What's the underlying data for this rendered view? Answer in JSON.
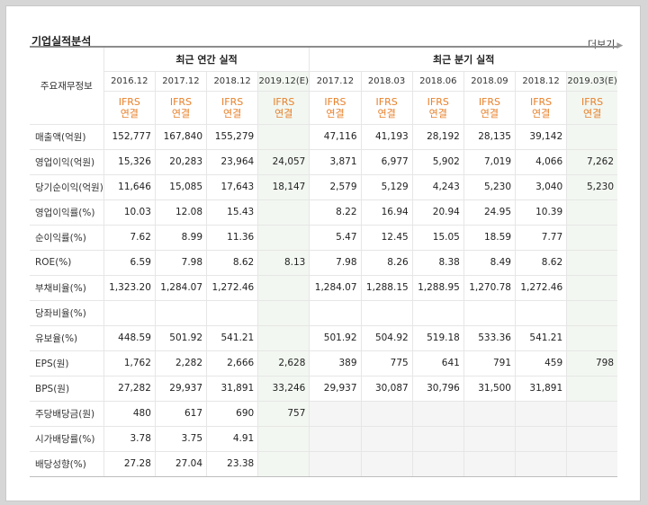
{
  "section": {
    "title": "기업실적분석",
    "more_label": "더보기"
  },
  "table": {
    "row_header_label": "주요재무정보",
    "annual_group_label": "최근 연간 실적",
    "quarter_group_label": "최근 분기 실적",
    "annual_periods": [
      "2016.12",
      "2017.12",
      "2018.12",
      "2019.12(E)"
    ],
    "quarter_periods": [
      "2017.12",
      "2018.03",
      "2018.06",
      "2018.09",
      "2018.12",
      "2019.03(E)"
    ],
    "ifrs_line1": "IFRS",
    "ifrs_line2": "연결",
    "rows": [
      {
        "label": "매출액(억원)",
        "annual": [
          "152,777",
          "167,840",
          "155,279",
          ""
        ],
        "quarter": [
          "47,116",
          "41,193",
          "28,192",
          "28,135",
          "39,142",
          ""
        ]
      },
      {
        "label": "영업이익(억원)",
        "annual": [
          "15,326",
          "20,283",
          "23,964",
          "24,057"
        ],
        "quarter": [
          "3,871",
          "6,977",
          "5,902",
          "7,019",
          "4,066",
          "7,262"
        ]
      },
      {
        "label": "당기순이익(억원)",
        "annual": [
          "11,646",
          "15,085",
          "17,643",
          "18,147"
        ],
        "quarter": [
          "2,579",
          "5,129",
          "4,243",
          "5,230",
          "3,040",
          "5,230"
        ]
      },
      {
        "label": "영업이익률(%)",
        "annual": [
          "10.03",
          "12.08",
          "15.43",
          ""
        ],
        "quarter": [
          "8.22",
          "16.94",
          "20.94",
          "24.95",
          "10.39",
          ""
        ]
      },
      {
        "label": "순이익률(%)",
        "annual": [
          "7.62",
          "8.99",
          "11.36",
          ""
        ],
        "quarter": [
          "5.47",
          "12.45",
          "15.05",
          "18.59",
          "7.77",
          ""
        ]
      },
      {
        "label": "ROE(%)",
        "annual": [
          "6.59",
          "7.98",
          "8.62",
          "8.13"
        ],
        "quarter": [
          "7.98",
          "8.26",
          "8.38",
          "8.49",
          "8.62",
          ""
        ]
      },
      {
        "label": "부채비율(%)",
        "annual": [
          "1,323.20",
          "1,284.07",
          "1,272.46",
          ""
        ],
        "quarter": [
          "1,284.07",
          "1,288.15",
          "1,288.95",
          "1,270.78",
          "1,272.46",
          ""
        ]
      },
      {
        "label": "당좌비율(%)",
        "annual": [
          "",
          "",
          "",
          ""
        ],
        "quarter": [
          "",
          "",
          "",
          "",
          "",
          ""
        ]
      },
      {
        "label": "유보율(%)",
        "annual": [
          "448.59",
          "501.92",
          "541.21",
          ""
        ],
        "quarter": [
          "501.92",
          "504.92",
          "519.18",
          "533.36",
          "541.21",
          ""
        ]
      },
      {
        "label": "EPS(원)",
        "annual": [
          "1,762",
          "2,282",
          "2,666",
          "2,628"
        ],
        "quarter": [
          "389",
          "775",
          "641",
          "791",
          "459",
          "798"
        ]
      },
      {
        "label": "BPS(원)",
        "annual": [
          "27,282",
          "29,937",
          "31,891",
          "33,246"
        ],
        "quarter": [
          "29,937",
          "30,087",
          "30,796",
          "31,500",
          "31,891",
          ""
        ]
      },
      {
        "label": "주당배당금(원)",
        "annual": [
          "480",
          "617",
          "690",
          "757"
        ],
        "quarter": null
      },
      {
        "label": "시가배당률(%)",
        "annual": [
          "3.78",
          "3.75",
          "4.91",
          ""
        ],
        "quarter": null
      },
      {
        "label": "배당성향(%)",
        "annual": [
          "27.28",
          "27.04",
          "23.38",
          ""
        ],
        "quarter": null
      }
    ]
  }
}
